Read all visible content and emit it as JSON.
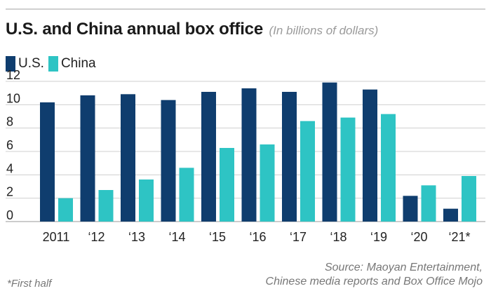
{
  "header": {
    "title": "U.S. and China annual box office",
    "subtitle": "(In billions of dollars)"
  },
  "footnote": "*First half",
  "source": {
    "line1": "Source: Maoyan Entertainment,",
    "line2": "Chinese media reports and Box Office Mojo"
  },
  "colors": {
    "us": "#0f3d6e",
    "china": "#2ec4c4",
    "grid": "#cfcfcf"
  },
  "chart_data": {
    "type": "bar",
    "title": "U.S. and China annual box office",
    "subtitle": "(In billions of dollars)",
    "categories": [
      "2011",
      "‘12",
      "‘13",
      "‘14",
      "‘15",
      "‘16",
      "‘17",
      "‘18",
      "‘19",
      "‘20",
      "‘21*"
    ],
    "series": [
      {
        "name": "U.S.",
        "values": [
          10.2,
          10.8,
          10.9,
          10.4,
          11.1,
          11.4,
          11.1,
          11.9,
          11.3,
          2.2,
          1.1
        ]
      },
      {
        "name": "China",
        "values": [
          2.0,
          2.7,
          3.6,
          4.6,
          6.3,
          6.6,
          8.6,
          8.9,
          9.2,
          3.1,
          3.9
        ]
      }
    ],
    "yticks": [
      0,
      2,
      4,
      6,
      8,
      10,
      12
    ],
    "ylim": [
      0,
      12
    ],
    "grid": true,
    "legend_position": "top-left"
  }
}
